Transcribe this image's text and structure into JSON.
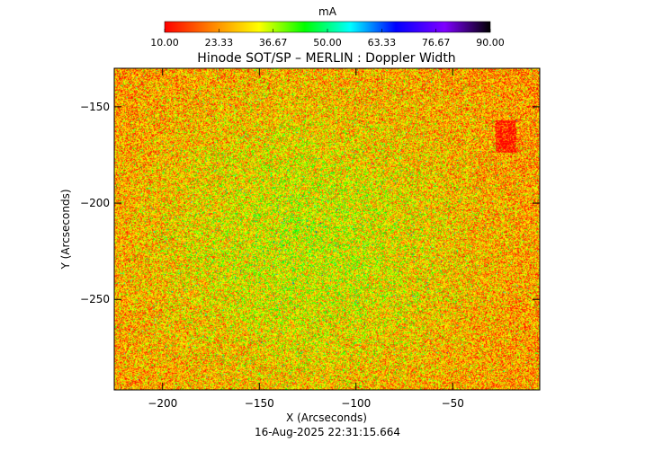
{
  "chart_data": {
    "type": "heatmap",
    "title": "Hinode SOT/SP – MERLIN : Doppler Width",
    "xlabel": "X (Arcseconds)",
    "ylabel": "Y (Arcseconds)",
    "timestamp": "16-Aug-2025 22:31:15.664",
    "colorbar": {
      "unit": "mA",
      "ticks": [
        "10.00",
        "23.33",
        "36.67",
        "50.00",
        "63.33",
        "76.67",
        "90.00"
      ],
      "range": [
        10.0,
        90.0
      ],
      "colormap": [
        "#ff0000",
        "#ff7f00",
        "#ffff00",
        "#00ff00",
        "#00ffff",
        "#0000ff",
        "#7f00ff",
        "#000000"
      ]
    },
    "x_axis": {
      "range": [
        -225,
        -5
      ],
      "ticks": [
        -200,
        -150,
        -100,
        -50
      ],
      "tick_labels": [
        "−200",
        "−150",
        "−100",
        "−50"
      ]
    },
    "y_axis": {
      "range": [
        -297,
        -130
      ],
      "ticks": [
        -150,
        -200,
        -250
      ],
      "tick_labels": [
        "−150",
        "−200",
        "−250"
      ]
    },
    "map_description_values": {
      "dominant_range_mA": [
        10,
        40
      ],
      "typical_value_mA": 25
    },
    "grid": false,
    "legend": "colorbar-top"
  }
}
